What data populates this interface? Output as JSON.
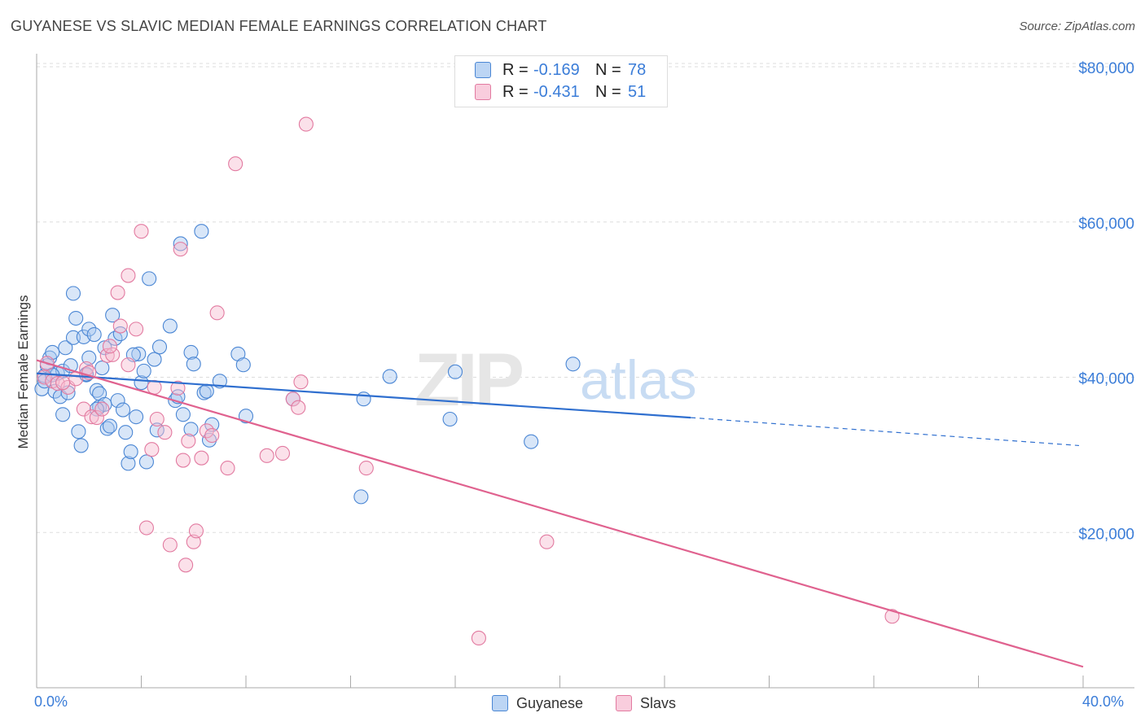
{
  "title": "GUYANESE VS SLAVIC MEDIAN FEMALE EARNINGS CORRELATION CHART",
  "source": "Source: ZipAtlas.com",
  "watermark": {
    "zip": "ZIP",
    "atlas": "atlas"
  },
  "colors": {
    "guyanese_fill": "#a9c8f0",
    "guyanese_stroke": "#4a86d4",
    "guyanese_line": "#2f6fcf",
    "slavs_fill": "#f7bcd0",
    "slavs_stroke": "#e27aa0",
    "slavs_line": "#e0628f",
    "grid": "#dddddd",
    "axis_text": "#3b7dd8"
  },
  "legend": {
    "rows": [
      {
        "r_label": "R =",
        "r_value": "-0.169",
        "n_label": "N =",
        "n_value": "78"
      },
      {
        "r_label": "R =",
        "r_value": "-0.431",
        "n_label": "N =",
        "n_value": "51"
      }
    ]
  },
  "bottom_legend": {
    "guyanese": "Guyanese",
    "slavs": "Slavs"
  },
  "chart_data": {
    "type": "scatter",
    "title": "GUYANESE VS SLAVIC MEDIAN FEMALE EARNINGS CORRELATION CHART",
    "xlabel": "",
    "ylabel": "Median Female Earnings",
    "xlim": [
      0,
      40
    ],
    "ylim": [
      0,
      82000
    ],
    "x_tick_labels": [
      "0.0%",
      "40.0%"
    ],
    "y_ticks": [
      20000,
      40000,
      60000,
      80000
    ],
    "y_tick_labels": [
      "$20,000",
      "$40,000",
      "$60,000",
      "$80,000"
    ],
    "grid": true,
    "series": [
      {
        "name": "Guyanese",
        "trend": {
          "x0": 0,
          "y0": 40500,
          "x1": 25,
          "y1": 34800,
          "dashed_to_x": 40,
          "dashed_to_y": 31200
        },
        "points": [
          [
            0.2,
            38500
          ],
          [
            0.3,
            40200
          ],
          [
            0.3,
            39500
          ],
          [
            0.4,
            41500
          ],
          [
            0.5,
            42500
          ],
          [
            0.6,
            43200
          ],
          [
            0.7,
            38200
          ],
          [
            0.8,
            40500
          ],
          [
            0.9,
            37500
          ],
          [
            1.0,
            35200
          ],
          [
            1.0,
            40800
          ],
          [
            1.1,
            43800
          ],
          [
            1.2,
            38000
          ],
          [
            1.3,
            41500
          ],
          [
            1.4,
            50800
          ],
          [
            1.4,
            45100
          ],
          [
            1.5,
            47600
          ],
          [
            1.6,
            33000
          ],
          [
            1.7,
            31200
          ],
          [
            1.8,
            45200
          ],
          [
            1.9,
            40300
          ],
          [
            2.0,
            42500
          ],
          [
            2.0,
            46200
          ],
          [
            2.2,
            45500
          ],
          [
            2.3,
            38300
          ],
          [
            2.4,
            36200
          ],
          [
            2.4,
            37900
          ],
          [
            2.5,
            41200
          ],
          [
            2.6,
            36500
          ],
          [
            2.6,
            43800
          ],
          [
            2.7,
            33400
          ],
          [
            2.8,
            33700
          ],
          [
            2.9,
            48000
          ],
          [
            3.0,
            45000
          ],
          [
            3.1,
            37000
          ],
          [
            3.2,
            45600
          ],
          [
            3.3,
            35800
          ],
          [
            3.4,
            32900
          ],
          [
            3.5,
            28900
          ],
          [
            3.6,
            30400
          ],
          [
            3.8,
            34900
          ],
          [
            3.9,
            43000
          ],
          [
            4.0,
            39300
          ],
          [
            4.1,
            40800
          ],
          [
            4.2,
            29100
          ],
          [
            4.3,
            52700
          ],
          [
            4.5,
            42300
          ],
          [
            4.6,
            33200
          ],
          [
            4.7,
            43900
          ],
          [
            5.1,
            46600
          ],
          [
            5.3,
            37000
          ],
          [
            5.4,
            37500
          ],
          [
            5.5,
            57200
          ],
          [
            5.6,
            35200
          ],
          [
            5.9,
            33300
          ],
          [
            5.9,
            43200
          ],
          [
            6.0,
            41700
          ],
          [
            6.3,
            58800
          ],
          [
            6.4,
            38000
          ],
          [
            6.6,
            31900
          ],
          [
            6.7,
            33900
          ],
          [
            7.0,
            39500
          ],
          [
            7.7,
            43000
          ],
          [
            7.9,
            41600
          ],
          [
            8.0,
            35000
          ],
          [
            9.8,
            37200
          ],
          [
            12.5,
            37200
          ],
          [
            13.5,
            40100
          ],
          [
            12.4,
            24600
          ],
          [
            16.0,
            40700
          ],
          [
            15.8,
            34600
          ],
          [
            18.9,
            31700
          ],
          [
            20.5,
            41700
          ],
          [
            0.6,
            40300
          ],
          [
            1.9,
            40400
          ],
          [
            2.3,
            35900
          ],
          [
            3.7,
            42900
          ],
          [
            6.5,
            38200
          ]
        ]
      },
      {
        "name": "Slavs",
        "trend": {
          "x0": 0,
          "y0": 42200,
          "x1": 40,
          "y1": 2700
        },
        "points": [
          [
            0.3,
            40000
          ],
          [
            0.4,
            41800
          ],
          [
            0.6,
            39500
          ],
          [
            0.8,
            39200
          ],
          [
            1.2,
            38700
          ],
          [
            1.5,
            39800
          ],
          [
            1.8,
            35900
          ],
          [
            1.9,
            41100
          ],
          [
            2.0,
            40600
          ],
          [
            2.1,
            34900
          ],
          [
            2.3,
            34800
          ],
          [
            2.5,
            35900
          ],
          [
            2.7,
            42800
          ],
          [
            2.9,
            42900
          ],
          [
            3.1,
            50900
          ],
          [
            3.2,
            46600
          ],
          [
            3.5,
            41600
          ],
          [
            3.5,
            53100
          ],
          [
            3.8,
            46200
          ],
          [
            4.0,
            58800
          ],
          [
            4.2,
            20600
          ],
          [
            4.4,
            30700
          ],
          [
            4.5,
            38700
          ],
          [
            4.6,
            34600
          ],
          [
            4.9,
            32900
          ],
          [
            5.1,
            18400
          ],
          [
            5.4,
            38600
          ],
          [
            5.5,
            56500
          ],
          [
            5.6,
            29300
          ],
          [
            5.7,
            15800
          ],
          [
            6.0,
            18800
          ],
          [
            6.1,
            20200
          ],
          [
            6.3,
            29600
          ],
          [
            6.5,
            33100
          ],
          [
            6.7,
            32500
          ],
          [
            6.9,
            48300
          ],
          [
            7.3,
            28300
          ],
          [
            7.6,
            67500
          ],
          [
            8.8,
            29900
          ],
          [
            9.4,
            30200
          ],
          [
            9.8,
            37200
          ],
          [
            10.0,
            36100
          ],
          [
            10.1,
            39400
          ],
          [
            10.3,
            72600
          ],
          [
            12.6,
            28300
          ],
          [
            16.9,
            6400
          ],
          [
            19.5,
            18800
          ],
          [
            32.7,
            9200
          ],
          [
            1.0,
            39300
          ],
          [
            2.8,
            44000
          ],
          [
            5.8,
            31800
          ]
        ]
      }
    ]
  }
}
